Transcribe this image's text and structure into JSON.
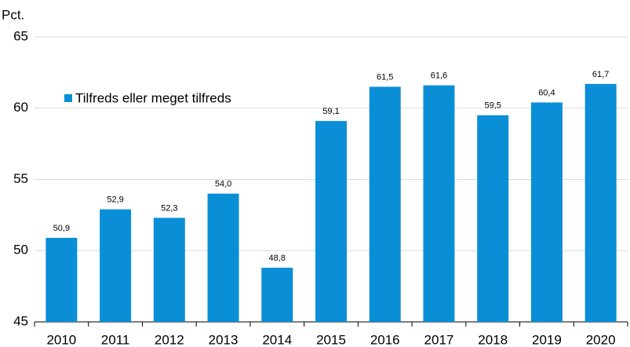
{
  "chart_data": {
    "type": "bar",
    "y_axis_label": "Pct.",
    "legend_label": "Tilfreds eller meget tilfreds",
    "categories": [
      "2010",
      "2011",
      "2012",
      "2013",
      "2014",
      "2015",
      "2016",
      "2017",
      "2018",
      "2019",
      "2020"
    ],
    "values": [
      50.9,
      52.9,
      52.3,
      54.0,
      48.8,
      59.1,
      61.5,
      61.6,
      59.5,
      60.4,
      61.7
    ],
    "value_labels": [
      "50,9",
      "52,9",
      "52,3",
      "54,0",
      "48,8",
      "59,1",
      "61,5",
      "61,6",
      "59,5",
      "60,4",
      "61,7"
    ],
    "color": "#0a8fd6",
    "ylim": [
      45,
      65
    ],
    "yticks": [
      45,
      50,
      55,
      60,
      65
    ],
    "grid": true,
    "legend": "upper left"
  }
}
